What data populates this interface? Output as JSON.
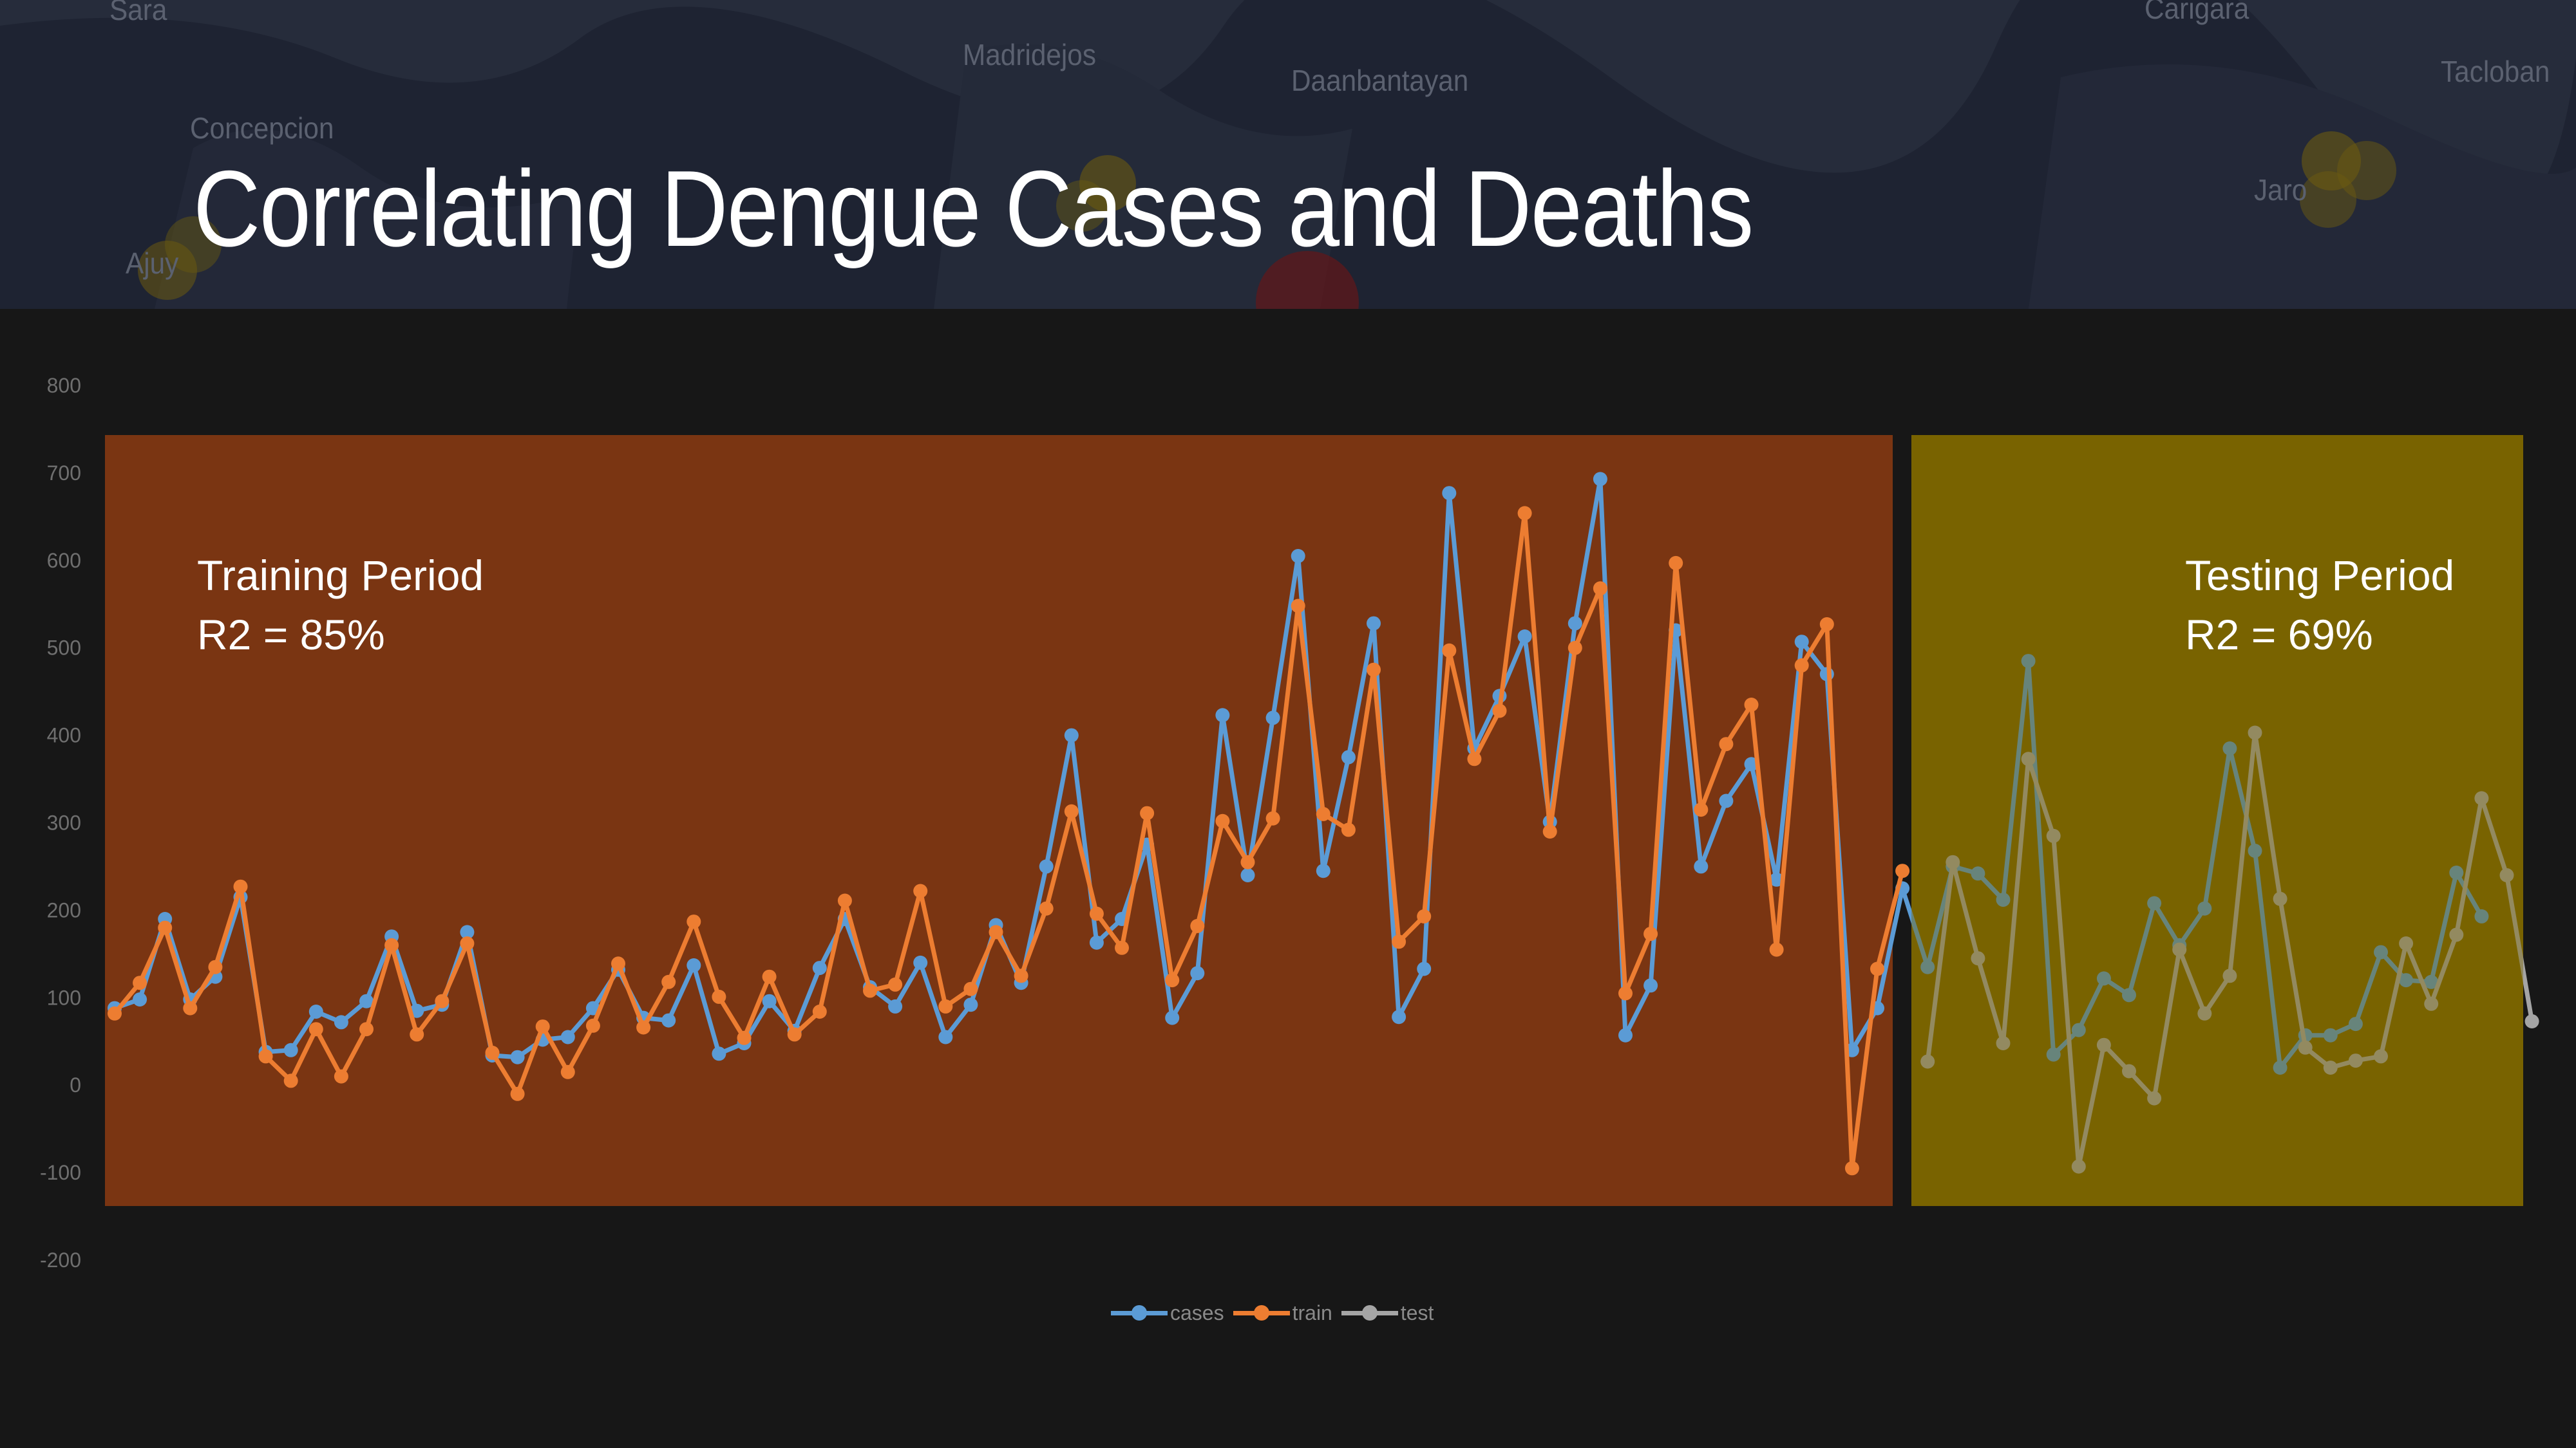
{
  "slide": {
    "title": "Correlating Dengue Cases and Deaths"
  },
  "map_labels": [
    "Sara",
    "Concepcion",
    "Madridejos",
    "Daanbantayan",
    "Carigara",
    "Tacloban",
    "Ajuy",
    "Jaro"
  ],
  "annotations": {
    "training": {
      "line1": "Training Period",
      "line2": "R2 = 85%"
    },
    "testing": {
      "line1": "Testing Period",
      "line2": "R2 = 69%"
    }
  },
  "colors": {
    "cases": "#5b9bd5",
    "train": "#ed7d31",
    "test": "#a5a5a5",
    "training_region": "#7a3512",
    "testing_region": "#796300"
  },
  "chart_data": {
    "type": "line",
    "y_ticks": [
      "800",
      "700",
      "600",
      "500",
      "400",
      "300",
      "200",
      "100",
      "0",
      "-100",
      "-200"
    ],
    "ylim": [
      -200,
      800
    ],
    "grid": false,
    "legend_position": "bottom",
    "x_count": 96,
    "train_end_index": 70,
    "series": [
      {
        "name": "cases",
        "key": "cases",
        "values": [
          88,
          98,
          190,
          98,
          124,
          215,
          38,
          40,
          84,
          72,
          96,
          170,
          85,
          92,
          175,
          34,
          32,
          52,
          55,
          88,
          132,
          77,
          74,
          137,
          36,
          48,
          96,
          62,
          134,
          190,
          112,
          90,
          140,
          55,
          92,
          183,
          117,
          250,
          400,
          163,
          190,
          275,
          77,
          128,
          423,
          240,
          420,
          605,
          245,
          375,
          528,
          78,
          133,
          677,
          385,
          445,
          513,
          301,
          528,
          693,
          57,
          114,
          520,
          250,
          325,
          367,
          235,
          507,
          470,
          40,
          88,
          225,
          135,
          250,
          242,
          212,
          485,
          35,
          63,
          122,
          103,
          208,
          160,
          202,
          385,
          268,
          20,
          57,
          57,
          70,
          152,
          120,
          118,
          243,
          193,
          null
        ]
      },
      {
        "name": "train",
        "key": "train",
        "values": [
          82,
          117,
          180,
          88,
          135,
          227,
          33,
          5,
          64,
          10,
          64,
          160,
          58,
          96,
          162,
          37,
          -10,
          67,
          15,
          68,
          139,
          66,
          118,
          187,
          101,
          54,
          124,
          58,
          84,
          211,
          108,
          115,
          222,
          90,
          110,
          175,
          125,
          202,
          313,
          196,
          157,
          311,
          120,
          182,
          302,
          255,
          305,
          548,
          310,
          292,
          475,
          164,
          193,
          497,
          373,
          428,
          654,
          290,
          500,
          568,
          105,
          173,
          597,
          315,
          390,
          435,
          155,
          480,
          527,
          -95,
          133,
          245,
          null,
          null,
          null,
          null,
          null,
          null,
          null,
          null,
          null,
          null,
          null,
          null,
          null,
          null,
          null,
          null,
          null,
          null,
          null,
          null,
          null,
          null,
          null,
          null
        ]
      },
      {
        "name": "test",
        "key": "test",
        "values": [
          null,
          null,
          null,
          null,
          null,
          null,
          null,
          null,
          null,
          null,
          null,
          null,
          null,
          null,
          null,
          null,
          null,
          null,
          null,
          null,
          null,
          null,
          null,
          null,
          null,
          null,
          null,
          null,
          null,
          null,
          null,
          null,
          null,
          null,
          null,
          null,
          null,
          null,
          null,
          null,
          null,
          null,
          null,
          null,
          null,
          null,
          null,
          null,
          null,
          null,
          null,
          null,
          null,
          null,
          null,
          null,
          null,
          null,
          null,
          null,
          null,
          null,
          null,
          null,
          null,
          null,
          null,
          null,
          null,
          null,
          null,
          null,
          27,
          255,
          145,
          48,
          373,
          285,
          -93,
          46,
          16,
          -15,
          155,
          82,
          125,
          403,
          213,
          43,
          20,
          28,
          33,
          162,
          93,
          172,
          328,
          240,
          73
        ]
      }
    ]
  }
}
